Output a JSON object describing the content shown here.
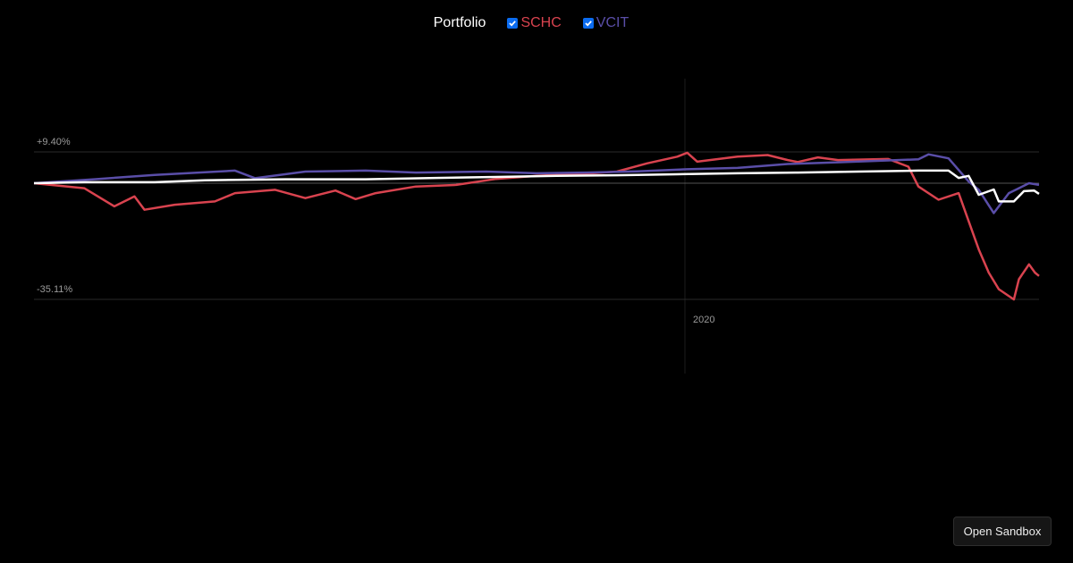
{
  "legend": {
    "portfolio_label": "Portfolio",
    "series": [
      {
        "label": "SCHC",
        "checked": true,
        "color": "#d9434f"
      },
      {
        "label": "VCIT",
        "checked": true,
        "color": "#5a4ea8"
      }
    ]
  },
  "axis": {
    "y_top_label": "+9.40%",
    "y_bottom_label": "-35.11%",
    "x_tick_label": "2020"
  },
  "button": {
    "open_sandbox": "Open Sandbox"
  },
  "chart_data": {
    "type": "line",
    "title": "",
    "xlabel": "",
    "ylabel": "",
    "ylim": [
      -35.11,
      9.4
    ],
    "y_ticks": [
      "+9.40%",
      "0%",
      "-35.11%"
    ],
    "x_ticks": [
      "2020"
    ],
    "grid": true,
    "legend_position": "top",
    "x_index": "relative time (0 = start, 100 = end); 2020 marker at ~64.7",
    "series": [
      {
        "name": "Portfolio",
        "color": "#ffffff",
        "points": [
          [
            0,
            0
          ],
          [
            5,
            0.3
          ],
          [
            12,
            0.3
          ],
          [
            17,
            0.9
          ],
          [
            25,
            1.2
          ],
          [
            33,
            1.2
          ],
          [
            40,
            1.6
          ],
          [
            46,
            1.9
          ],
          [
            52,
            2.2
          ],
          [
            58,
            2.4
          ],
          [
            64,
            2.7
          ],
          [
            70,
            3.0
          ],
          [
            76,
            3.2
          ],
          [
            82,
            3.5
          ],
          [
            88,
            3.8
          ],
          [
            91,
            3.8
          ],
          [
            92,
            1.6
          ],
          [
            93,
            2.2
          ],
          [
            94,
            -3.5
          ],
          [
            95.5,
            -1.9
          ],
          [
            96,
            -5.5
          ],
          [
            97.5,
            -5.5
          ],
          [
            98.5,
            -2.4
          ],
          [
            99.5,
            -2.2
          ],
          [
            100,
            -3.2
          ]
        ]
      },
      {
        "name": "SCHC",
        "color": "#d9434f",
        "points": [
          [
            0,
            0
          ],
          [
            5,
            -1.5
          ],
          [
            8,
            -7
          ],
          [
            10,
            -4
          ],
          [
            11,
            -8
          ],
          [
            14,
            -6.5
          ],
          [
            18,
            -5.5
          ],
          [
            20,
            -3
          ],
          [
            24,
            -2
          ],
          [
            27,
            -4.5
          ],
          [
            30,
            -2.2
          ],
          [
            32,
            -4.8
          ],
          [
            34,
            -3
          ],
          [
            38,
            -1
          ],
          [
            42,
            -0.5
          ],
          [
            46,
            1.3
          ],
          [
            50,
            2.2
          ],
          [
            55,
            2.9
          ],
          [
            58,
            3.5
          ],
          [
            61,
            6
          ],
          [
            64,
            8
          ],
          [
            65,
            9.2
          ],
          [
            66,
            6.5
          ],
          [
            70,
            8
          ],
          [
            73,
            8.5
          ],
          [
            75,
            7
          ],
          [
            76,
            6.4
          ],
          [
            78,
            7.8
          ],
          [
            80,
            7
          ],
          [
            85,
            7.3
          ],
          [
            87,
            5
          ],
          [
            88,
            -1
          ],
          [
            90,
            -5
          ],
          [
            92,
            -3
          ],
          [
            94,
            -20
          ],
          [
            95,
            -27
          ],
          [
            96,
            -32
          ],
          [
            97.5,
            -35.1
          ],
          [
            98,
            -29
          ],
          [
            99,
            -24.5
          ],
          [
            99.6,
            -27
          ],
          [
            100,
            -28
          ]
        ]
      },
      {
        "name": "VCIT",
        "color": "#5a4ea8",
        "points": [
          [
            0,
            0
          ],
          [
            6,
            1.2
          ],
          [
            12,
            2.5
          ],
          [
            20,
            3.8
          ],
          [
            22,
            1.5
          ],
          [
            27,
            3.5
          ],
          [
            33,
            3.8
          ],
          [
            38,
            3.2
          ],
          [
            45,
            3.5
          ],
          [
            50,
            3.0
          ],
          [
            55,
            3.2
          ],
          [
            60,
            3.6
          ],
          [
            65,
            4.2
          ],
          [
            70,
            4.6
          ],
          [
            75,
            5.8
          ],
          [
            80,
            6.3
          ],
          [
            88,
            7.2
          ],
          [
            89,
            8.7
          ],
          [
            91,
            7.5
          ],
          [
            92,
            4
          ],
          [
            93,
            0.5
          ],
          [
            94,
            -2
          ],
          [
            95.5,
            -9
          ],
          [
            97,
            -3
          ],
          [
            98,
            -1.5
          ],
          [
            99,
            0
          ],
          [
            100,
            -0.5
          ]
        ]
      }
    ]
  }
}
